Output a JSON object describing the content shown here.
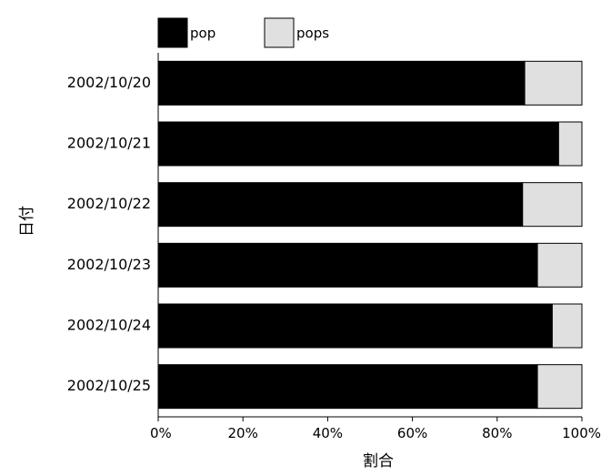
{
  "chart_data": {
    "type": "bar",
    "orientation": "horizontal",
    "stacked": true,
    "percent": true,
    "categories": [
      "2002/10/20",
      "2002/10/21",
      "2002/10/22",
      "2002/10/23",
      "2002/10/24",
      "2002/10/25"
    ],
    "series": [
      {
        "name": "pop",
        "color": "#000000",
        "values": [
          86.5,
          94.5,
          86,
          89.5,
          93,
          89.5
        ]
      },
      {
        "name": "pops",
        "color": "#e0e0e0",
        "values": [
          13.5,
          5.5,
          14,
          10.5,
          7,
          10.5
        ]
      }
    ],
    "xlabel": "割合",
    "ylabel": "日付",
    "xlim": [
      0,
      100
    ],
    "xticks": [
      "0%",
      "20%",
      "40%",
      "60%",
      "80%",
      "100%"
    ],
    "grid": false,
    "legend_position": "top-left"
  }
}
